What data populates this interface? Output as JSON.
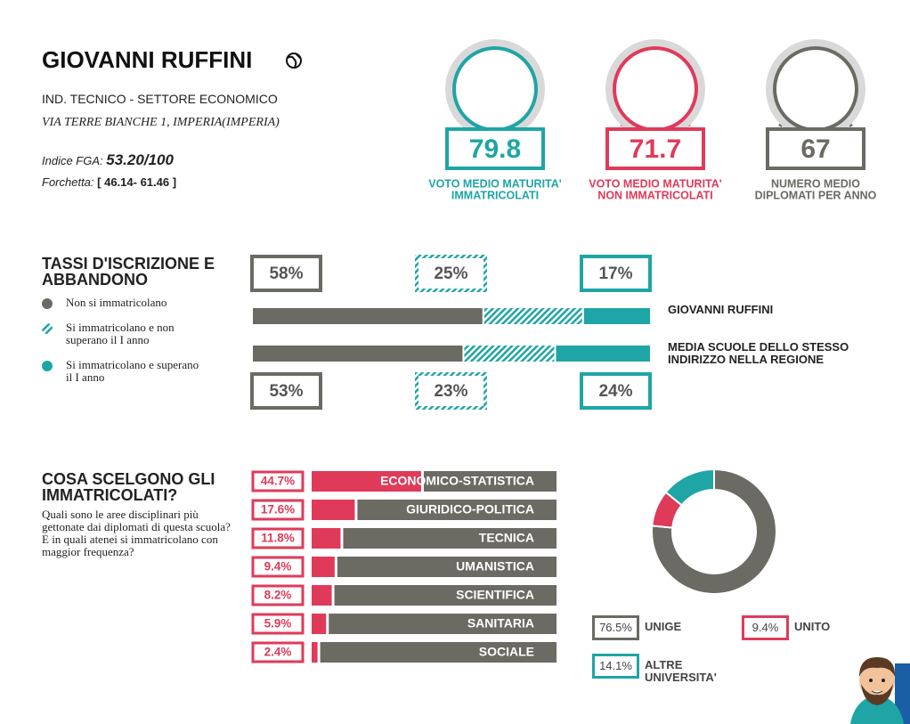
{
  "header": {
    "school": "GIOVANNI RUFFINI",
    "school_type": "IND. TECNICO - SETTORE ECONOMICO",
    "address": "VIA TERRE BIANCHE 1, IMPERIA(IMPERIA)",
    "fga_label": "Indice FGA:",
    "fga_value": "53.20/100",
    "range_label": "Forchetta:",
    "range_value": "[ 46.14- 61.46 ]"
  },
  "stats": [
    {
      "value": 79.8,
      "label": [
        "VOTO MEDIO MATURITA'",
        "IMMATRICOLATI"
      ],
      "color": "#1fa5a5"
    },
    {
      "value": 71.7,
      "label": [
        "VOTO MEDIO MATURITA'",
        "NON IMMATRICOLATI"
      ],
      "color": "#e03a5a"
    },
    {
      "value": 67,
      "label": [
        "NUMERO MEDIO",
        "DIPLOMATI PER ANNO"
      ],
      "color": "#6b6a63"
    }
  ],
  "chart_data": [
    {
      "type": "stacked-bar",
      "title": "TASSI D'ISCRIZIONE E ABBANDONO",
      "xlim": [
        0,
        100
      ],
      "categories": [
        "GIOVANNI RUFFINI",
        "MEDIA SCUOLE DELLO STESSO INDIRIZZO NELLA REGIONE"
      ],
      "series": [
        {
          "name": "Non si immatricolano",
          "color": "#6b6a63",
          "values": [
            58,
            53
          ],
          "value_labels": [
            "58%",
            "53%"
          ]
        },
        {
          "name": "Si immatricolano e non superano il I anno",
          "color": "#1fa5a5",
          "pattern": "hatch",
          "values": [
            25,
            23
          ],
          "value_labels": [
            "25%",
            "23%"
          ]
        },
        {
          "name": "Si immatricolano e superano il I anno",
          "color": "#1fa5a5",
          "values": [
            17,
            24
          ],
          "value_labels": [
            "17%",
            "24%"
          ]
        }
      ]
    },
    {
      "type": "bar",
      "title": "COSA SCELGONO GLI IMMATRICOLATI?",
      "subtitle": [
        "Quali sono le aree disciplinari più gettonate dai diplomati di questa scuola?",
        "E in quali atenei si immatricolano con maggior frequenza?"
      ],
      "xlim": [
        0,
        100
      ],
      "color": "#e03a5a",
      "rest_color": "#6b6a63",
      "categories": [
        "ECONOMICO-STATISTICA",
        "GIURIDICO-POLITICA",
        "TECNICA",
        "UMANISTICA",
        "SCIENTIFICA",
        "SANITARIA",
        "SOCIALE"
      ],
      "values": [
        44.7,
        17.6,
        11.8,
        9.4,
        8.2,
        5.9,
        2.4
      ],
      "value_labels": [
        "44.7%",
        "17.6%",
        "11.8%",
        "9.4%",
        "8.2%",
        "5.9%",
        "2.4%"
      ]
    },
    {
      "type": "pie",
      "categories": [
        "UNIGE",
        "UNITO",
        "ALTRE UNIVERSITA'"
      ],
      "values": [
        76.5,
        9.4,
        14.1
      ],
      "value_labels": [
        "76.5%",
        "9.4%",
        "14.1%"
      ],
      "colors": [
        "#6b6a63",
        "#e03a5a",
        "#1fa5a5"
      ]
    }
  ]
}
